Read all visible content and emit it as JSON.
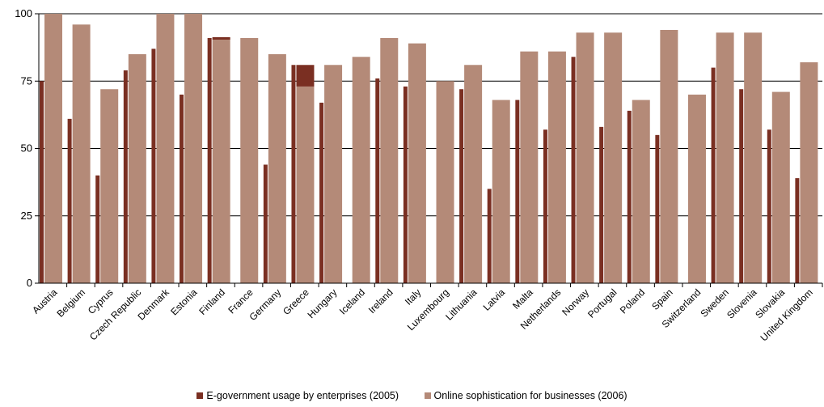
{
  "chart_data": {
    "type": "bar",
    "categories": [
      "Austria",
      "Belgium",
      "Cyprus",
      "Czech Republic",
      "Denmark",
      "Estonia",
      "Finland",
      "France",
      "Germany",
      "Greece",
      "Hungary",
      "Iceland",
      "Ireland",
      "Italy",
      "Luxembourg",
      "Lithuania",
      "Latvia",
      "Malta",
      "Netherlands",
      "Norway",
      "Portugal",
      "Poland",
      "Spain",
      "Switzerland",
      "Sweden",
      "Slovenia",
      "Slovakia",
      "United Kingdom"
    ],
    "series": [
      {
        "name": "E-government usage by enterprises (2005)",
        "color": "#7a2f22",
        "values": [
          75,
          61,
          40,
          79,
          87,
          70,
          91,
          null,
          44,
          81,
          67,
          null,
          76,
          73,
          null,
          72,
          35,
          68,
          57,
          84,
          58,
          64,
          55,
          null,
          80,
          72,
          57,
          39
        ]
      },
      {
        "name": "Online sophistication for businesses (2006)",
        "color": "#b48a78",
        "values": [
          100,
          96,
          72,
          85,
          100,
          100,
          91,
          91,
          85,
          73,
          81,
          84,
          91,
          89,
          75,
          81,
          68,
          86,
          86,
          93,
          93,
          68,
          94,
          70,
          93,
          93,
          71,
          82
        ]
      }
    ],
    "yticks": [
      0,
      25,
      50,
      75,
      100
    ],
    "ylim": [
      0,
      100
    ],
    "grid": true,
    "legend_position": "bottom"
  }
}
